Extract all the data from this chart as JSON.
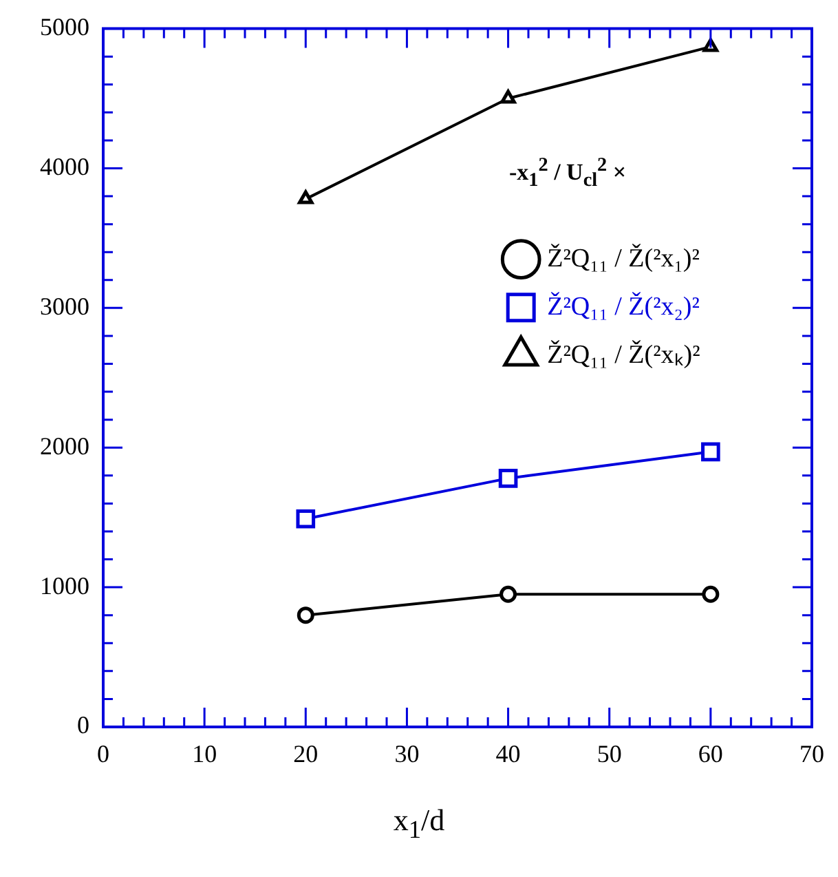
{
  "chart_data": {
    "type": "line",
    "xlabel": "x$_{1}$/d",
    "x": [
      20,
      40,
      60
    ],
    "series": [
      {
        "name": "Ž²Q₁₁ / Ž(²x₁)²",
        "color": "#000000",
        "values": [
          800,
          950,
          950
        ],
        "marker": "circle"
      },
      {
        "name": "Ž²Q₁₁ / Ž(²x₂)²",
        "color": "#0000dd",
        "values": [
          1490,
          1780,
          1970
        ],
        "marker": "square"
      },
      {
        "name": "Ž²Q₁₁ / Ž(²xₖ)²",
        "color": "#000000",
        "values": [
          3780,
          4500,
          4870
        ],
        "marker": "triangle"
      }
    ],
    "annotations": [
      "-x$_{1}$$^{2}$ / U$_{cl}$$^{2}$  ×"
    ],
    "xlim": [
      0,
      70
    ],
    "xticks": [
      0,
      10,
      20,
      30,
      40,
      50,
      60,
      70
    ],
    "ylim": [
      0,
      5000
    ],
    "yticks": [
      0,
      1000,
      2000,
      3000,
      4000,
      5000
    ],
    "grid": false,
    "legend": "right",
    "line_style": "solid"
  }
}
